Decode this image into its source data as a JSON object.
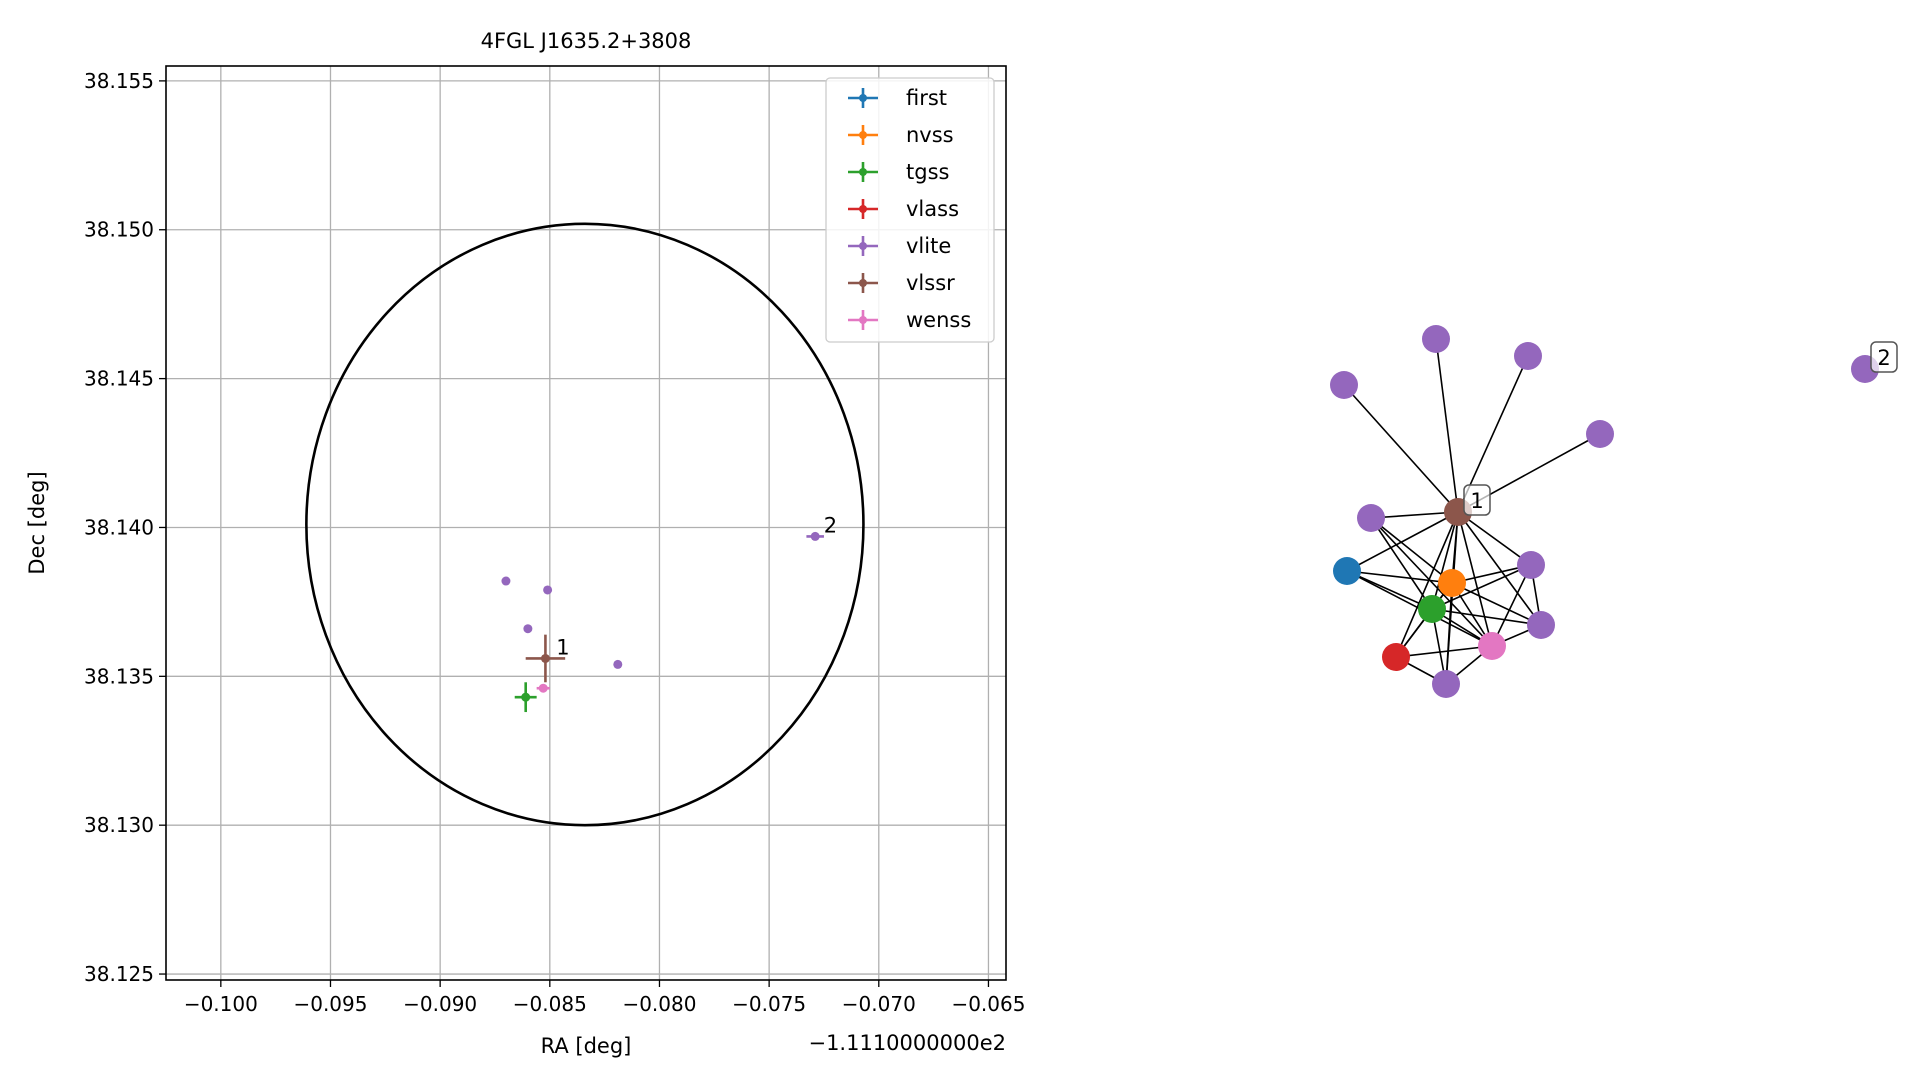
{
  "chart_data": [
    {
      "type": "scatter",
      "title": "4FGL J1635.2+3808",
      "xlabel": "RA [deg]",
      "ylabel": "Dec [deg]",
      "x_offset_label": "−1.1110000000e2",
      "xlim": [
        -0.1025,
        -0.0642
      ],
      "ylim": [
        38.1248,
        38.1555
      ],
      "x_ticks": [
        -0.1,
        -0.095,
        -0.09,
        -0.085,
        -0.08,
        -0.075,
        -0.07,
        -0.065
      ],
      "x_tick_labels": [
        "−0.100",
        "−0.095",
        "−0.090",
        "−0.085",
        "−0.080",
        "−0.075",
        "−0.070",
        "−0.065"
      ],
      "y_ticks": [
        38.125,
        38.13,
        38.135,
        38.14,
        38.145,
        38.15,
        38.155
      ],
      "y_tick_labels": [
        "38.125",
        "38.130",
        "38.135",
        "38.140",
        "38.145",
        "38.150",
        "38.155"
      ],
      "grid": true,
      "legend_position": "top-right",
      "circle": {
        "center_x": -0.0834,
        "center_y": 38.1401,
        "radius_x": 0.0127,
        "radius_y": 0.0101,
        "color": "#000000"
      },
      "series": [
        {
          "name": "first",
          "color": "#1f77b4",
          "points": []
        },
        {
          "name": "nvss",
          "color": "#ff7f0e",
          "points": []
        },
        {
          "name": "tgss",
          "color": "#2ca02c",
          "points": [
            {
              "x": -0.0861,
              "y": 38.1343,
              "xerr": 0.0005,
              "yerr": 0.0005
            }
          ]
        },
        {
          "name": "vlass",
          "color": "#d62728",
          "points": []
        },
        {
          "name": "vlite",
          "color": "#9467bd",
          "points": [
            {
              "x": -0.087,
              "y": 38.1382,
              "xerr": 0,
              "yerr": 0
            },
            {
              "x": -0.0851,
              "y": 38.1379,
              "xerr": 0,
              "yerr": 0.0001
            },
            {
              "x": -0.086,
              "y": 38.1366,
              "xerr": 0,
              "yerr": 0
            },
            {
              "x": -0.0819,
              "y": 38.1354,
              "xerr": 0,
              "yerr": 0
            },
            {
              "x": -0.0729,
              "y": 38.1397,
              "xerr": 0.0004,
              "yerr": 0.0001
            }
          ]
        },
        {
          "name": "vlssr",
          "color": "#8c564b",
          "points": [
            {
              "x": -0.0852,
              "y": 38.1356,
              "xerr": 0.0009,
              "yerr": 0.0008
            }
          ]
        },
        {
          "name": "wenss",
          "color": "#e377c2",
          "points": [
            {
              "x": -0.0853,
              "y": 38.1346,
              "xerr": 0.0003,
              "yerr": 0.0001
            }
          ]
        }
      ],
      "annotations": [
        {
          "text": "1",
          "x": -0.0848,
          "y": 38.1356
        },
        {
          "text": "2",
          "x": -0.0726,
          "y": 38.1397
        }
      ]
    },
    {
      "type": "network",
      "cluster_labels": [
        "1",
        "2"
      ],
      "nodes": [
        {
          "id": "hub",
          "series": "vlssr",
          "label": "1"
        },
        {
          "id": "v1",
          "series": "vlite"
        },
        {
          "id": "v2",
          "series": "vlite"
        },
        {
          "id": "v3",
          "series": "vlite"
        },
        {
          "id": "v4",
          "series": "vlite"
        },
        {
          "id": "v5",
          "series": "vlite"
        },
        {
          "id": "v6",
          "series": "vlite"
        },
        {
          "id": "v7",
          "series": "vlite"
        },
        {
          "id": "v8",
          "series": "vlite"
        },
        {
          "id": "first",
          "series": "first"
        },
        {
          "id": "nvss",
          "series": "nvss"
        },
        {
          "id": "tgss",
          "series": "tgss"
        },
        {
          "id": "vlass",
          "series": "vlass"
        },
        {
          "id": "wenss",
          "series": "wenss"
        },
        {
          "id": "lone",
          "series": "vlite",
          "label": "2"
        }
      ],
      "edges": [
        [
          "hub",
          "v1"
        ],
        [
          "hub",
          "v2"
        ],
        [
          "hub",
          "v3"
        ],
        [
          "hub",
          "v4"
        ],
        [
          "hub",
          "v5"
        ],
        [
          "hub",
          "v6"
        ],
        [
          "hub",
          "v7"
        ],
        [
          "hub",
          "v8"
        ],
        [
          "hub",
          "first"
        ],
        [
          "hub",
          "nvss"
        ],
        [
          "hub",
          "tgss"
        ],
        [
          "hub",
          "vlass"
        ],
        [
          "hub",
          "wenss"
        ],
        [
          "first",
          "nvss"
        ],
        [
          "first",
          "tgss"
        ],
        [
          "first",
          "wenss"
        ],
        [
          "v5",
          "nvss"
        ],
        [
          "v5",
          "tgss"
        ],
        [
          "v5",
          "wenss"
        ],
        [
          "nvss",
          "tgss"
        ],
        [
          "nvss",
          "vlass"
        ],
        [
          "nvss",
          "wenss"
        ],
        [
          "nvss",
          "v6"
        ],
        [
          "nvss",
          "v7"
        ],
        [
          "nvss",
          "v8"
        ],
        [
          "tgss",
          "vlass"
        ],
        [
          "tgss",
          "v8"
        ],
        [
          "tgss",
          "wenss"
        ],
        [
          "tgss",
          "v6"
        ],
        [
          "tgss",
          "v7"
        ],
        [
          "vlass",
          "wenss"
        ],
        [
          "vlass",
          "v8"
        ],
        [
          "wenss",
          "v6"
        ],
        [
          "wenss",
          "v7"
        ],
        [
          "wenss",
          "v8"
        ],
        [
          "v6",
          "v7"
        ]
      ]
    }
  ]
}
